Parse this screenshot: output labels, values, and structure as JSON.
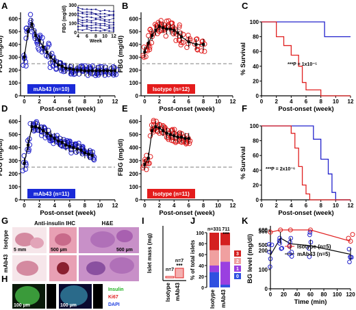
{
  "colors": {
    "blue": "#2222cc",
    "red": "#e02020",
    "dash": "#aaaaaa",
    "legend_blue": "#1a2ad8",
    "legend_red": "#e41c1c"
  },
  "labels": {
    "A": "A",
    "B": "B",
    "C": "C",
    "D": "D",
    "E": "E",
    "F": "F",
    "G": "G",
    "H": "H",
    "I": "I",
    "J": "J",
    "K": "K",
    "fbg": "FBG (mg/dl)",
    "postonset": "Post-onset (week)",
    "survival": "% Survival",
    "week": "Week",
    "inset_ylabel": "FBG (mg/dl)",
    "legend_A": "mAb43 (n=10)",
    "legend_B": "Isotype (n=12)",
    "legend_D": "mAb43 (n=11)",
    "legend_E": "Isotype (n=11)",
    "pval_C": "***P = 1x10⁻⁵",
    "pval_F": "***P = 2x10⁻⁶"
  },
  "panelG": {
    "col1": "Anti-insulin IHC",
    "col2": "H&E",
    "row1": "Isotype",
    "row2": "mAb43",
    "scale1": "5 mm",
    "scale2": "500 µm",
    "scale3": "500 µm"
  },
  "panelH": {
    "scale1": "100 µm",
    "scale2": "100 µm",
    "insulin": "Insulin",
    "ki67": "Ki67",
    "dapi": "DAPI"
  },
  "panelI": {
    "ylabel": "Islet mass (mg)",
    "n1": "n=7",
    "n2": "n=7",
    "sig": "***",
    "cats": [
      "Isotype",
      "mAb43"
    ]
  },
  "panelJ": {
    "ylabel": "% of total islets",
    "n1": "n=331",
    "n2": "711",
    "sig": "***",
    "cats": [
      "Isotype",
      "mAb43"
    ],
    "legend": [
      "3",
      "2",
      "1",
      "0"
    ],
    "legend_colors": [
      "#d42020",
      "#f0a0a0",
      "#9a40e0",
      "#3050e0"
    ]
  },
  "panelK": {
    "ylabel": "BG level (mg/dl)",
    "xlabel": "Time (min)",
    "legend": [
      "Isotype (n=5)",
      "mAb43 (n=5)"
    ]
  },
  "chart_data": [
    {
      "panel": "A",
      "type": "scatter",
      "xlabel": "Post-onset (week)",
      "ylabel": "FBG (mg/dl)",
      "xlim": [
        -0.5,
        12
      ],
      "ylim": [
        0,
        650
      ],
      "threshold": 250,
      "x": [
        0,
        0.5,
        1,
        1.5,
        2,
        2.5,
        3,
        3.5,
        4,
        4.5,
        5,
        5.5,
        6,
        6.5,
        7,
        7.5,
        8,
        8.5,
        9,
        9.5,
        10,
        10.5,
        11,
        11.5,
        12
      ],
      "series": [
        {
          "name": "mAb43 (n=10)",
          "values": [
            300,
            500,
            560,
            470,
            430,
            380,
            340,
            300,
            270,
            240,
            230,
            215,
            210,
            205,
            200,
            200,
            195,
            195,
            195,
            195,
            195,
            195,
            195,
            195,
            195
          ]
        }
      ],
      "inset": {
        "xlabel": "Week",
        "ylabel": "FBG (mg/dl)",
        "xticks": [
          4,
          6,
          8,
          10,
          12
        ],
        "yticks": [
          0,
          100,
          200,
          300
        ]
      }
    },
    {
      "panel": "B",
      "type": "scatter",
      "xlabel": "Post-onset (week)",
      "ylabel": "FBG (mg/dl)",
      "xlim": [
        -0.5,
        12
      ],
      "ylim": [
        0,
        650
      ],
      "threshold": 250,
      "x": [
        0,
        0.5,
        1,
        1.5,
        2,
        2.5,
        3,
        3.5,
        4,
        4.5,
        5,
        6,
        7,
        8
      ],
      "series": [
        {
          "name": "Isotype (n=12)",
          "values": [
            340,
            410,
            470,
            510,
            540,
            530,
            520,
            520,
            510,
            490,
            460,
            420,
            400,
            400
          ]
        }
      ]
    },
    {
      "panel": "C",
      "type": "line",
      "xlabel": "Post-onset (week)",
      "ylabel": "% Survival",
      "xlim": [
        0,
        12
      ],
      "ylim": [
        0,
        100
      ],
      "series": [
        {
          "steps": [
            [
              0,
              100
            ],
            [
              8.5,
              100
            ],
            [
              8.5,
              80
            ],
            [
              12,
              80
            ]
          ]
        },
        {
          "steps": [
            [
              0,
              100
            ],
            [
              2,
              100
            ],
            [
              2,
              80
            ],
            [
              3,
              80
            ],
            [
              3,
              68
            ],
            [
              4,
              68
            ],
            [
              4,
              55
            ],
            [
              5,
              55
            ],
            [
              5,
              40
            ],
            [
              5.5,
              40
            ],
            [
              5.5,
              18
            ],
            [
              6,
              18
            ],
            [
              6,
              8
            ],
            [
              8,
              8
            ],
            [
              8,
              0
            ],
            [
              12,
              0
            ]
          ]
        }
      ]
    },
    {
      "panel": "D",
      "type": "scatter",
      "xlabel": "Post-onset (week)",
      "ylabel": "FBG (mg/dl)",
      "xlim": [
        -0.5,
        12
      ],
      "ylim": [
        0,
        650
      ],
      "threshold": 250,
      "x": [
        0,
        0.5,
        1,
        1.5,
        2,
        2.5,
        3,
        3.5,
        4,
        4.5,
        5,
        5.5,
        6,
        6.5,
        7,
        7.5,
        8,
        8.5,
        9
      ],
      "series": [
        {
          "name": "mAb43 (n=11)",
          "values": [
            280,
            420,
            560,
            560,
            550,
            530,
            510,
            490,
            470,
            450,
            440,
            420,
            410,
            400,
            390,
            380,
            360,
            350,
            340
          ]
        }
      ]
    },
    {
      "panel": "E",
      "type": "scatter",
      "xlabel": "Post-onset (week)",
      "ylabel": "FBG (mg/dl)",
      "xlim": [
        -0.5,
        12
      ],
      "ylim": [
        0,
        650
      ],
      "threshold": 250,
      "x": [
        0,
        0.5,
        1,
        1.5,
        2,
        2.5,
        3,
        3.5,
        4,
        4.5,
        5,
        5.5,
        6
      ],
      "series": [
        {
          "name": "Isotype (n=11)",
          "values": [
            270,
            320,
            530,
            560,
            550,
            530,
            510,
            500,
            490,
            480,
            480,
            470,
            470
          ]
        }
      ]
    },
    {
      "panel": "F",
      "type": "line",
      "xlabel": "Post-onset (week)",
      "ylabel": "% Survival",
      "xlim": [
        0,
        12
      ],
      "ylim": [
        0,
        100
      ],
      "series": [
        {
          "steps": [
            [
              0,
              100
            ],
            [
              7,
              100
            ],
            [
              7,
              82
            ],
            [
              8,
              82
            ],
            [
              8,
              55
            ],
            [
              9,
              55
            ],
            [
              9,
              35
            ],
            [
              9.5,
              35
            ],
            [
              9.5,
              10
            ],
            [
              10,
              10
            ],
            [
              10,
              0
            ],
            [
              12,
              0
            ]
          ]
        },
        {
          "steps": [
            [
              0,
              100
            ],
            [
              4,
              100
            ],
            [
              4,
              90
            ],
            [
              4.5,
              90
            ],
            [
              4.5,
              70
            ],
            [
              5,
              70
            ],
            [
              5,
              45
            ],
            [
              5.5,
              45
            ],
            [
              5.5,
              20
            ],
            [
              6,
              20
            ],
            [
              6,
              8
            ],
            [
              6.5,
              8
            ],
            [
              6.5,
              0
            ],
            [
              12,
              0
            ]
          ]
        }
      ]
    },
    {
      "panel": "I",
      "type": "bar",
      "categories": [
        "Isotype",
        "mAb43"
      ],
      "values": [
        0.05,
        1.0
      ],
      "ylabel": "Islet mass (mg)"
    },
    {
      "panel": "J",
      "type": "bar",
      "categories": [
        "Isotype",
        "mAb43"
      ],
      "ylabel": "% of total islets",
      "ylim": [
        0,
        100
      ],
      "series": [
        {
          "name": "0",
          "values": [
            28,
            5
          ]
        },
        {
          "name": "1",
          "values": [
            12,
            42
          ]
        },
        {
          "name": "2",
          "values": [
            28,
            30
          ]
        },
        {
          "name": "3",
          "values": [
            32,
            23
          ]
        }
      ]
    },
    {
      "panel": "K",
      "type": "line",
      "xlabel": "Time (min)",
      "ylabel": "BG level (mg/dl)",
      "x": [
        0,
        15,
        30,
        60,
        120
      ],
      "yticks": [
        0,
        100,
        200,
        300,
        500,
        600
      ],
      "series": [
        {
          "name": "Isotype (n=5)",
          "values": [
            585,
            600,
            600,
            600,
            525
          ]
        },
        {
          "name": "mAb43 (n=5)",
          "values": [
            175,
            265,
            235,
            225,
            180
          ]
        }
      ]
    }
  ]
}
